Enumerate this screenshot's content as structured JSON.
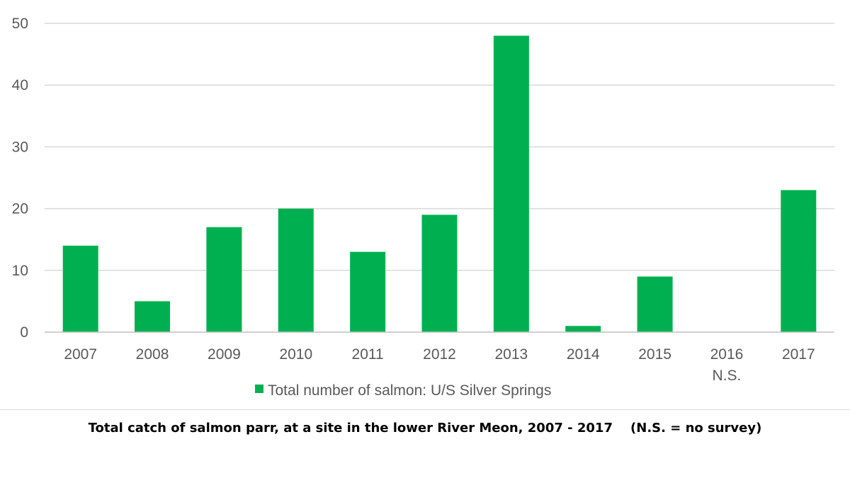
{
  "chart_data": {
    "type": "bar",
    "categories": [
      "2007",
      "2008",
      "2009",
      "2010",
      "2011",
      "2012",
      "2013",
      "2014",
      "2015",
      "2016",
      "2017"
    ],
    "category_sublabels": [
      "",
      "",
      "",
      "",
      "",
      "",
      "",
      "",
      "",
      "N.S.",
      ""
    ],
    "series": [
      {
        "name": "Total number of salmon: U/S Silver Springs",
        "values": [
          14,
          5,
          17,
          20,
          13,
          19,
          48,
          1,
          9,
          null,
          23
        ],
        "color": "#00b050"
      }
    ],
    "yticks": [
      0,
      10,
      20,
      30,
      40,
      50
    ],
    "ylim": [
      0,
      50
    ],
    "grid": true,
    "legend": "bottom-center",
    "title": "",
    "xlabel": "",
    "ylabel": ""
  },
  "caption": "Total catch of salmon parr, at a site in the lower River Meon, 2007 - 2017    (N.S. = no survey)",
  "colors": {
    "bar": "#00b050",
    "grid": "#d9d9d9",
    "text": "#595959"
  }
}
